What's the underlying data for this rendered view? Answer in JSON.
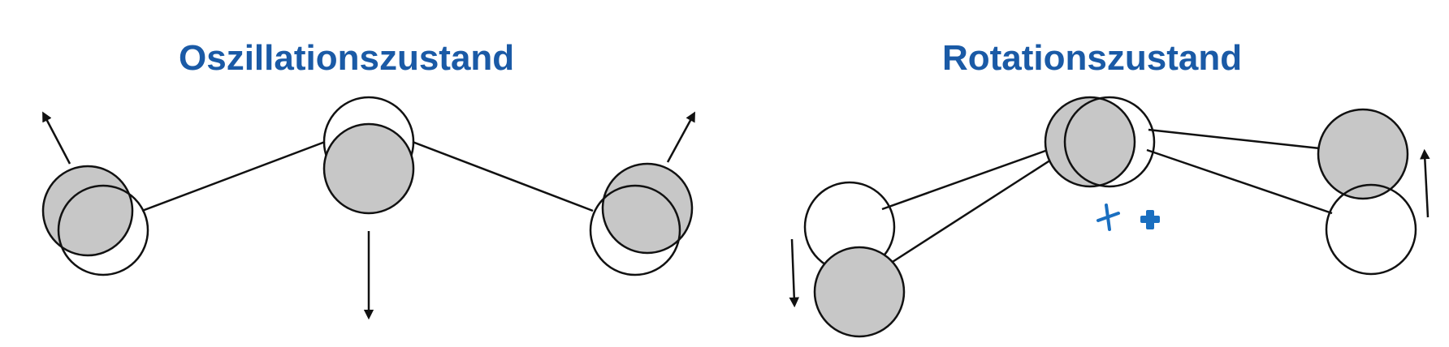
{
  "titles": {
    "oscillation": "Oszillationszustand",
    "rotation": "Rotationszustand"
  },
  "colors": {
    "title": "#1a5aa6",
    "atom_fill": "#c7c7c7",
    "stroke": "#111111",
    "marker": "#1a6fc0"
  },
  "icons": {
    "cursor": "cursor-cross-icon",
    "marker": "plus-icon"
  }
}
